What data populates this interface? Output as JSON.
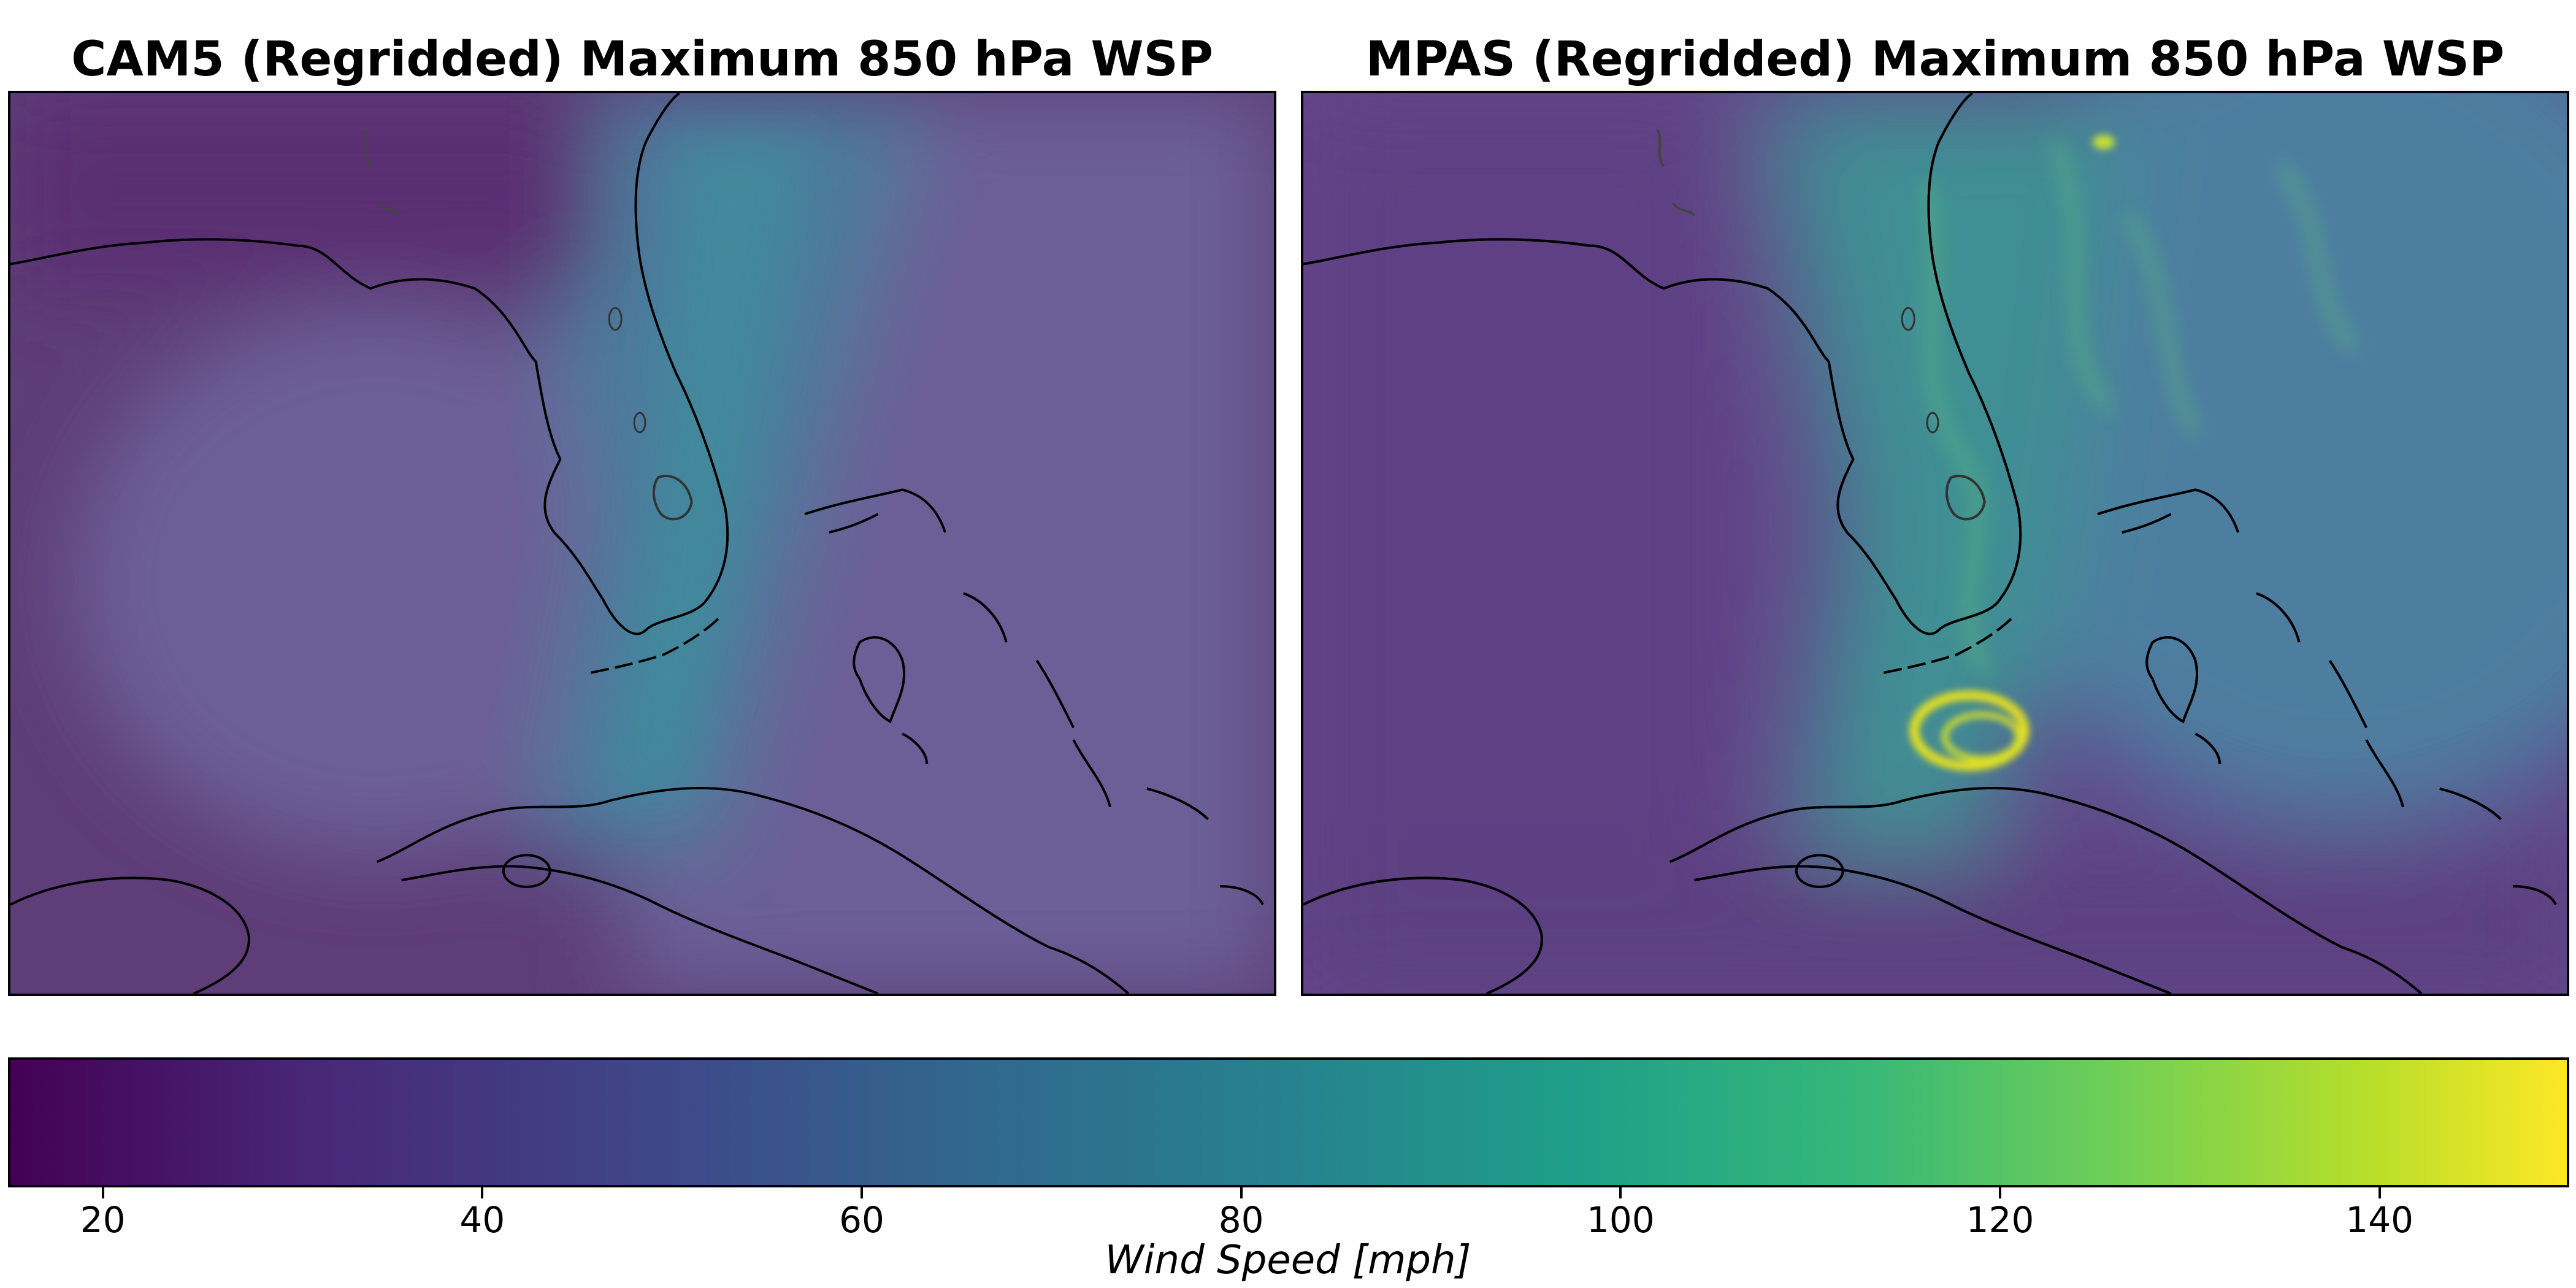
{
  "panels": [
    {
      "title": "CAM5 (Regridded) Maximum 850 hPa WSP"
    },
    {
      "title": "MPAS (Regridded) Maximum 850 hPa WSP"
    }
  ],
  "colorbar": {
    "label": "Wind Speed [mph]",
    "colormap": "viridis",
    "range": [
      15,
      150
    ],
    "ticks": [
      20,
      40,
      60,
      80,
      100,
      120,
      140
    ]
  },
  "colors": {
    "background_low": "#5c2f6e",
    "map_mid": "#6a5a96",
    "core": "#3f8f94",
    "peak": "#e5e021",
    "coastline": "#000000"
  }
}
